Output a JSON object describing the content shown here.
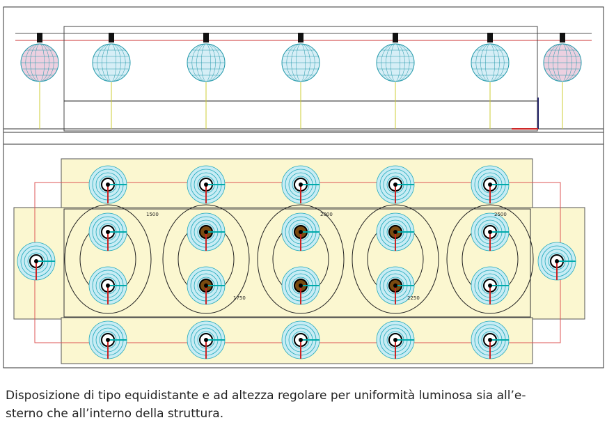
{
  "caption": {
    "lines": [
      "Disposizione di tipo equidistante e ad altezza regolare per uniformità luminosa sia all’e-",
      "sterno che all’interno della struttura."
    ]
  },
  "contour_labels": [
    "1500",
    "1750",
    "2000",
    "2250",
    "2500"
  ]
}
